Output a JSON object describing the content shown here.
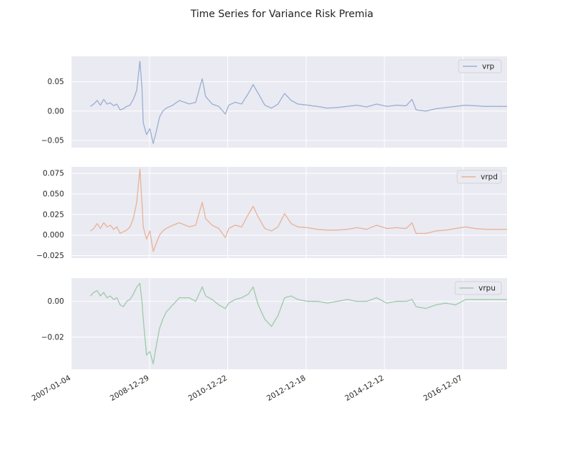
{
  "chart_data": {
    "type": "line",
    "title": "Time Series for Variance Risk Premia",
    "grid": true,
    "legend_placement": "top-right",
    "x_tick_labels": [
      "2007-01-04",
      "2008-12-29",
      "2010-12-22",
      "2012-12-18",
      "2014-12-12",
      "2016-12-07"
    ],
    "xlim": [
      "2007-01-04",
      "2018-01-20"
    ],
    "series": [
      {
        "name": "vrp",
        "color": "#9aaed2",
        "ylim": [
          -0.062,
          0.093
        ],
        "y_ticks": [
          -0.05,
          0.0,
          0.05
        ],
        "y_tick_labels": [
          "−0.05",
          "0.00",
          "0.05"
        ],
        "points": [
          [
            "2007-07-01",
            0.008
          ],
          [
            "2007-08-01",
            0.012
          ],
          [
            "2007-09-01",
            0.018
          ],
          [
            "2007-10-01",
            0.01
          ],
          [
            "2007-11-01",
            0.02
          ],
          [
            "2007-12-01",
            0.012
          ],
          [
            "2008-01-01",
            0.014
          ],
          [
            "2008-02-01",
            0.009
          ],
          [
            "2008-03-01",
            0.012
          ],
          [
            "2008-04-01",
            0.002
          ],
          [
            "2008-05-01",
            0.004
          ],
          [
            "2008-06-01",
            0.008
          ],
          [
            "2008-07-01",
            0.01
          ],
          [
            "2008-08-01",
            0.02
          ],
          [
            "2008-09-01",
            0.035
          ],
          [
            "2008-10-01",
            0.085
          ],
          [
            "2008-10-20",
            0.04
          ],
          [
            "2008-11-01",
            -0.02
          ],
          [
            "2008-12-01",
            -0.04
          ],
          [
            "2009-01-01",
            -0.03
          ],
          [
            "2009-02-01",
            -0.055
          ],
          [
            "2009-03-01",
            -0.035
          ],
          [
            "2009-04-01",
            -0.01
          ],
          [
            "2009-05-01",
            0.0
          ],
          [
            "2009-06-01",
            0.005
          ],
          [
            "2009-08-01",
            0.01
          ],
          [
            "2009-10-01",
            0.018
          ],
          [
            "2010-01-01",
            0.012
          ],
          [
            "2010-03-01",
            0.015
          ],
          [
            "2010-05-01",
            0.055
          ],
          [
            "2010-06-01",
            0.025
          ],
          [
            "2010-08-01",
            0.012
          ],
          [
            "2010-10-01",
            0.008
          ],
          [
            "2010-12-01",
            -0.005
          ],
          [
            "2011-01-01",
            0.01
          ],
          [
            "2011-03-01",
            0.015
          ],
          [
            "2011-05-01",
            0.012
          ],
          [
            "2011-07-01",
            0.03
          ],
          [
            "2011-08-15",
            0.045
          ],
          [
            "2011-10-01",
            0.03
          ],
          [
            "2011-12-01",
            0.01
          ],
          [
            "2012-02-01",
            0.005
          ],
          [
            "2012-04-01",
            0.012
          ],
          [
            "2012-06-01",
            0.03
          ],
          [
            "2012-08-01",
            0.018
          ],
          [
            "2012-10-01",
            0.012
          ],
          [
            "2013-01-01",
            0.01
          ],
          [
            "2013-04-01",
            0.008
          ],
          [
            "2013-07-01",
            0.005
          ],
          [
            "2013-10-01",
            0.006
          ],
          [
            "2014-01-01",
            0.008
          ],
          [
            "2014-04-01",
            0.01
          ],
          [
            "2014-07-01",
            0.007
          ],
          [
            "2014-10-01",
            0.012
          ],
          [
            "2015-01-01",
            0.008
          ],
          [
            "2015-04-01",
            0.01
          ],
          [
            "2015-07-01",
            0.009
          ],
          [
            "2015-08-25",
            0.02
          ],
          [
            "2015-10-01",
            0.002
          ],
          [
            "2016-01-01",
            0.0
          ],
          [
            "2016-04-01",
            0.004
          ],
          [
            "2016-07-01",
            0.006
          ],
          [
            "2016-10-01",
            0.008
          ],
          [
            "2017-01-01",
            0.01
          ],
          [
            "2017-04-01",
            0.009
          ],
          [
            "2017-07-01",
            0.008
          ],
          [
            "2017-10-01",
            0.008
          ],
          [
            "2018-01-20",
            0.008
          ]
        ]
      },
      {
        "name": "vrpd",
        "color": "#e8b296",
        "ylim": [
          -0.028,
          0.083
        ],
        "y_ticks": [
          -0.025,
          0.0,
          0.025,
          0.05,
          0.075
        ],
        "y_tick_labels": [
          "−0.025",
          "0.000",
          "0.025",
          "0.050",
          "0.075"
        ],
        "points": [
          [
            "2007-07-01",
            0.005
          ],
          [
            "2007-08-01",
            0.008
          ],
          [
            "2007-09-01",
            0.014
          ],
          [
            "2007-10-01",
            0.008
          ],
          [
            "2007-11-01",
            0.015
          ],
          [
            "2007-12-01",
            0.01
          ],
          [
            "2008-01-01",
            0.012
          ],
          [
            "2008-02-01",
            0.007
          ],
          [
            "2008-03-01",
            0.01
          ],
          [
            "2008-04-01",
            0.002
          ],
          [
            "2008-05-01",
            0.004
          ],
          [
            "2008-06-01",
            0.006
          ],
          [
            "2008-07-01",
            0.01
          ],
          [
            "2008-08-01",
            0.02
          ],
          [
            "2008-09-01",
            0.04
          ],
          [
            "2008-10-01",
            0.08
          ],
          [
            "2008-10-20",
            0.04
          ],
          [
            "2008-11-01",
            0.01
          ],
          [
            "2008-12-01",
            -0.005
          ],
          [
            "2009-01-01",
            0.005
          ],
          [
            "2009-02-01",
            -0.02
          ],
          [
            "2009-03-01",
            -0.01
          ],
          [
            "2009-04-01",
            0.0
          ],
          [
            "2009-05-01",
            0.005
          ],
          [
            "2009-06-01",
            0.008
          ],
          [
            "2009-08-01",
            0.012
          ],
          [
            "2009-10-01",
            0.015
          ],
          [
            "2010-01-01",
            0.01
          ],
          [
            "2010-03-01",
            0.012
          ],
          [
            "2010-05-01",
            0.04
          ],
          [
            "2010-06-01",
            0.02
          ],
          [
            "2010-08-01",
            0.012
          ],
          [
            "2010-10-01",
            0.008
          ],
          [
            "2010-12-01",
            -0.003
          ],
          [
            "2011-01-01",
            0.008
          ],
          [
            "2011-03-01",
            0.012
          ],
          [
            "2011-05-01",
            0.01
          ],
          [
            "2011-07-01",
            0.025
          ],
          [
            "2011-08-15",
            0.035
          ],
          [
            "2011-10-01",
            0.022
          ],
          [
            "2011-12-01",
            0.008
          ],
          [
            "2012-02-01",
            0.005
          ],
          [
            "2012-04-01",
            0.01
          ],
          [
            "2012-06-01",
            0.026
          ],
          [
            "2012-08-01",
            0.014
          ],
          [
            "2012-10-01",
            0.01
          ],
          [
            "2013-01-01",
            0.009
          ],
          [
            "2013-04-01",
            0.007
          ],
          [
            "2013-07-01",
            0.006
          ],
          [
            "2013-10-01",
            0.006
          ],
          [
            "2014-01-01",
            0.007
          ],
          [
            "2014-04-01",
            0.009
          ],
          [
            "2014-07-01",
            0.007
          ],
          [
            "2014-10-01",
            0.012
          ],
          [
            "2015-01-01",
            0.008
          ],
          [
            "2015-04-01",
            0.009
          ],
          [
            "2015-07-01",
            0.008
          ],
          [
            "2015-08-25",
            0.015
          ],
          [
            "2015-10-01",
            0.002
          ],
          [
            "2016-01-01",
            0.002
          ],
          [
            "2016-04-01",
            0.005
          ],
          [
            "2016-07-01",
            0.006
          ],
          [
            "2016-10-01",
            0.008
          ],
          [
            "2017-01-01",
            0.01
          ],
          [
            "2017-04-01",
            0.008
          ],
          [
            "2017-07-01",
            0.007
          ],
          [
            "2017-10-01",
            0.007
          ],
          [
            "2018-01-20",
            0.007
          ]
        ]
      },
      {
        "name": "vrpu",
        "color": "#9ccaa7",
        "ylim": [
          -0.038,
          0.013
        ],
        "y_ticks": [
          -0.02,
          0.0
        ],
        "y_tick_labels": [
          "−0.02",
          "0.00"
        ],
        "points": [
          [
            "2007-07-01",
            0.003
          ],
          [
            "2007-08-01",
            0.005
          ],
          [
            "2007-09-01",
            0.006
          ],
          [
            "2007-10-01",
            0.003
          ],
          [
            "2007-11-01",
            0.005
          ],
          [
            "2007-12-01",
            0.002
          ],
          [
            "2008-01-01",
            0.003
          ],
          [
            "2008-02-01",
            0.001
          ],
          [
            "2008-03-01",
            0.002
          ],
          [
            "2008-04-01",
            -0.002
          ],
          [
            "2008-05-01",
            -0.003
          ],
          [
            "2008-06-01",
            0.0
          ],
          [
            "2008-07-01",
            0.001
          ],
          [
            "2008-08-01",
            0.004
          ],
          [
            "2008-09-01",
            0.008
          ],
          [
            "2008-10-01",
            0.01
          ],
          [
            "2008-10-20",
            0.0
          ],
          [
            "2008-11-01",
            -0.01
          ],
          [
            "2008-12-01",
            -0.03
          ],
          [
            "2009-01-01",
            -0.028
          ],
          [
            "2009-02-01",
            -0.035
          ],
          [
            "2009-03-01",
            -0.025
          ],
          [
            "2009-04-01",
            -0.015
          ],
          [
            "2009-05-01",
            -0.01
          ],
          [
            "2009-06-01",
            -0.006
          ],
          [
            "2009-08-01",
            -0.002
          ],
          [
            "2009-10-01",
            0.002
          ],
          [
            "2010-01-01",
            0.002
          ],
          [
            "2010-03-01",
            0.0
          ],
          [
            "2010-05-01",
            0.008
          ],
          [
            "2010-06-01",
            0.003
          ],
          [
            "2010-08-01",
            0.001
          ],
          [
            "2010-10-01",
            -0.002
          ],
          [
            "2010-12-01",
            -0.004
          ],
          [
            "2011-01-01",
            -0.001
          ],
          [
            "2011-03-01",
            0.001
          ],
          [
            "2011-05-01",
            0.002
          ],
          [
            "2011-07-01",
            0.004
          ],
          [
            "2011-08-15",
            0.008
          ],
          [
            "2011-10-01",
            -0.002
          ],
          [
            "2011-12-01",
            -0.01
          ],
          [
            "2012-02-01",
            -0.014
          ],
          [
            "2012-04-01",
            -0.008
          ],
          [
            "2012-06-01",
            0.002
          ],
          [
            "2012-08-01",
            0.003
          ],
          [
            "2012-10-01",
            0.001
          ],
          [
            "2013-01-01",
            0.0
          ],
          [
            "2013-04-01",
            0.0
          ],
          [
            "2013-07-01",
            -0.001
          ],
          [
            "2013-10-01",
            0.0
          ],
          [
            "2014-01-01",
            0.001
          ],
          [
            "2014-04-01",
            0.0
          ],
          [
            "2014-07-01",
            0.0
          ],
          [
            "2014-10-01",
            0.002
          ],
          [
            "2015-01-01",
            -0.001
          ],
          [
            "2015-04-01",
            0.0
          ],
          [
            "2015-07-01",
            0.0
          ],
          [
            "2015-08-25",
            0.001
          ],
          [
            "2015-10-01",
            -0.003
          ],
          [
            "2016-01-01",
            -0.004
          ],
          [
            "2016-04-01",
            -0.002
          ],
          [
            "2016-07-01",
            -0.001
          ],
          [
            "2016-10-01",
            -0.002
          ],
          [
            "2017-01-01",
            0.001
          ],
          [
            "2017-04-01",
            0.001
          ],
          [
            "2017-07-01",
            0.001
          ],
          [
            "2017-10-01",
            0.001
          ],
          [
            "2018-01-20",
            0.001
          ]
        ]
      }
    ]
  }
}
